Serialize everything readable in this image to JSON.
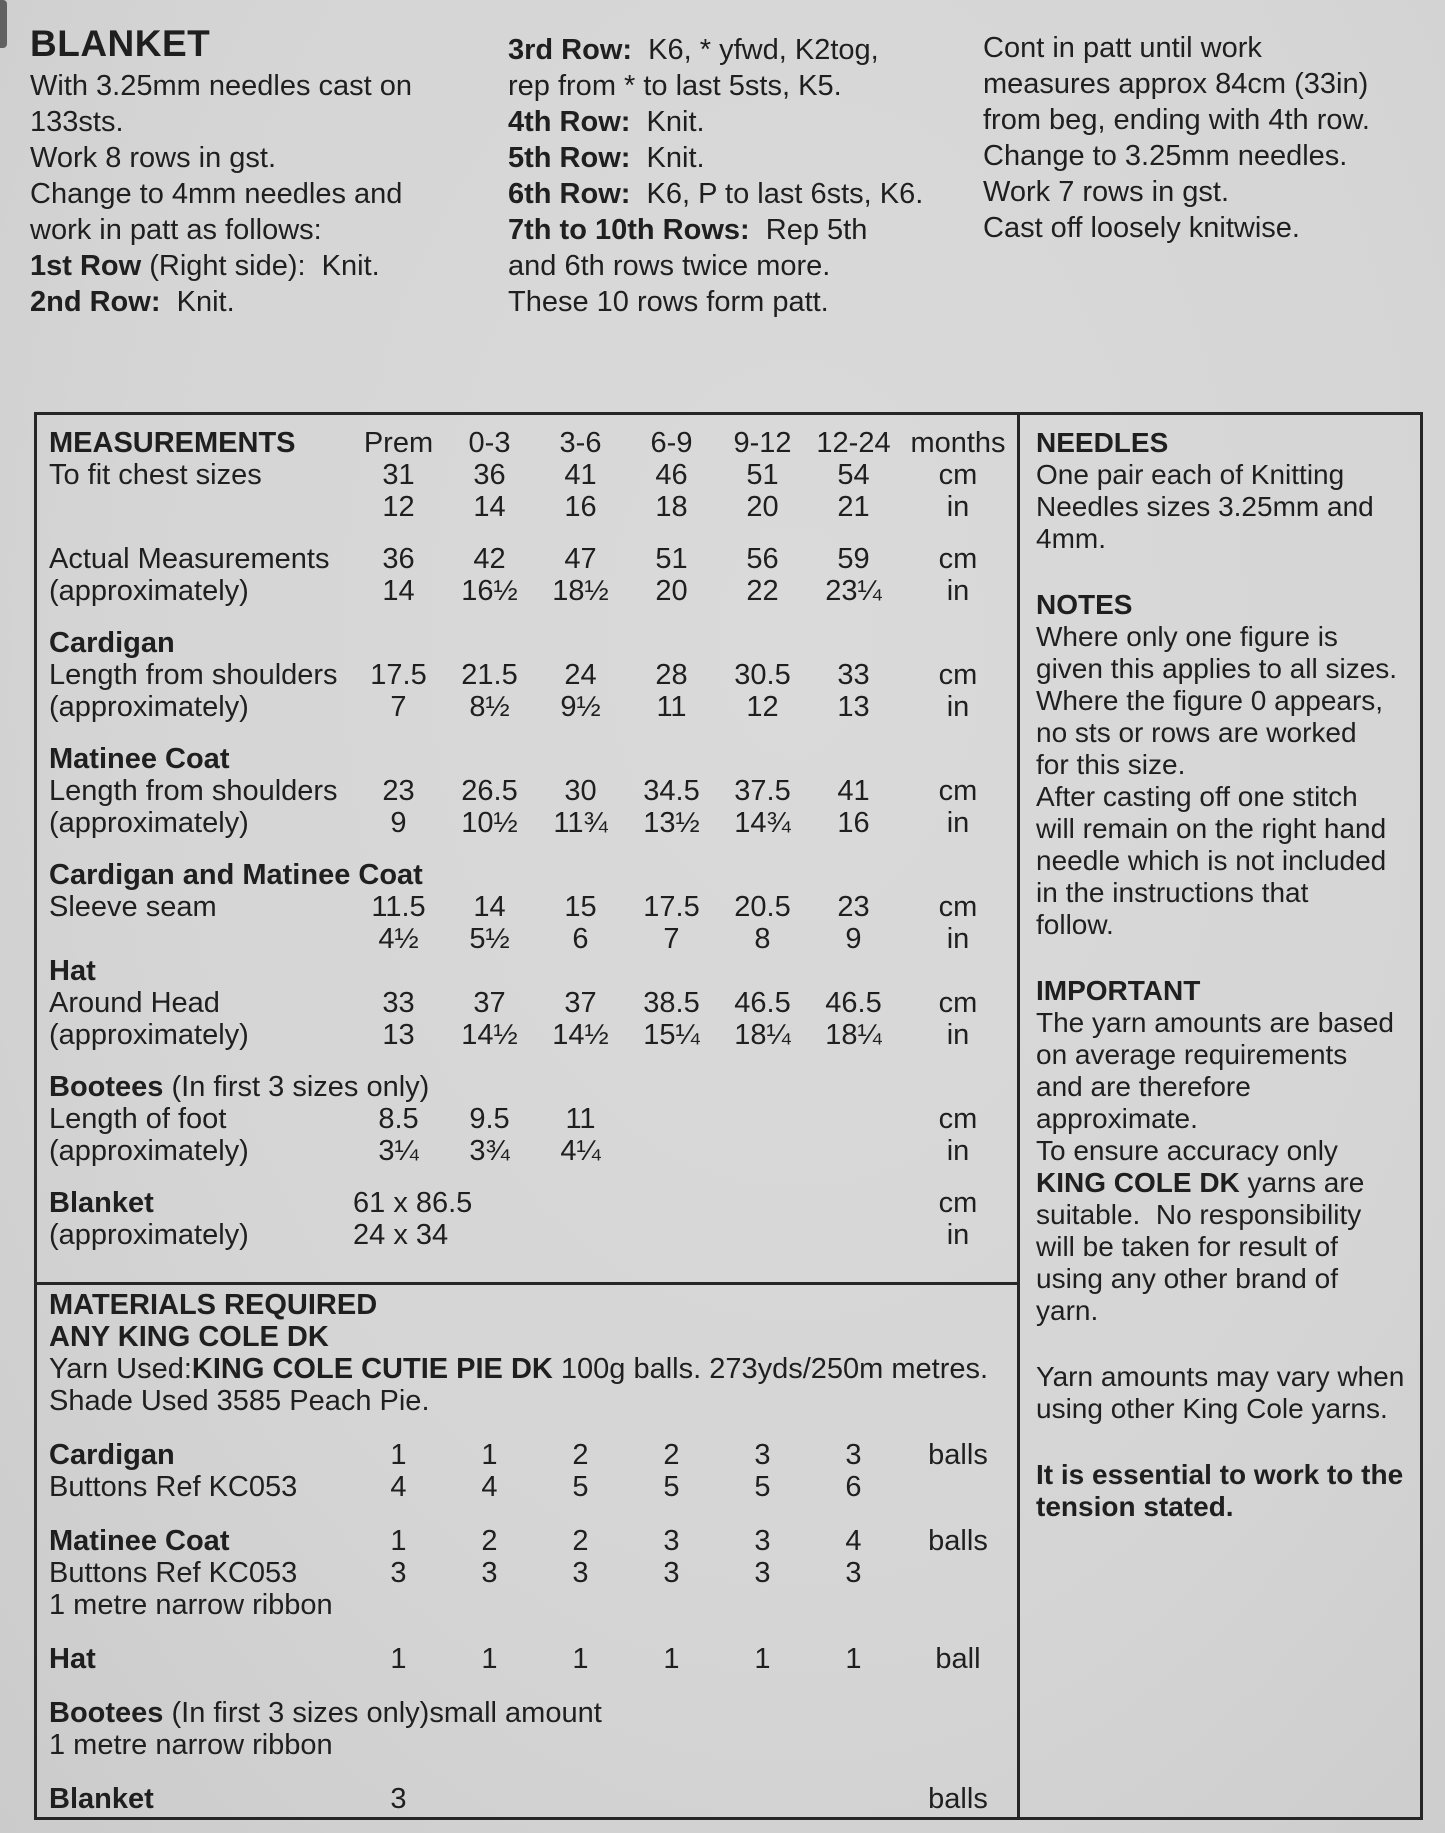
{
  "intro": {
    "columns": [
      {
        "lines": [
          [
            {
              "t": "BLANKET",
              "b": true,
              "h": true
            }
          ],
          [
            {
              "t": "With 3.25mm needles cast on"
            }
          ],
          [
            {
              "t": "133sts."
            }
          ],
          [
            {
              "t": "Work 8 rows in gst."
            }
          ],
          [
            {
              "t": "Change to 4mm needles and"
            }
          ],
          [
            {
              "t": "work in patt as follows:"
            }
          ],
          [
            {
              "t": "1st Row",
              "b": true
            },
            {
              "t": " (Right side):  Knit."
            }
          ],
          [
            {
              "t": "2nd Row:",
              "b": true
            },
            {
              "t": "  Knit."
            }
          ]
        ]
      },
      {
        "lines": [
          [
            {
              "t": "3rd Row:",
              "b": true
            },
            {
              "t": "  K6, * yfwd, K2tog,"
            }
          ],
          [
            {
              "t": "rep from * to last 5sts, K5."
            }
          ],
          [
            {
              "t": "4th Row:",
              "b": true
            },
            {
              "t": "  Knit."
            }
          ],
          [
            {
              "t": "5th Row:",
              "b": true
            },
            {
              "t": "  Knit."
            }
          ],
          [
            {
              "t": "6th Row:",
              "b": true
            },
            {
              "t": "  K6, P to last 6sts, K6."
            }
          ],
          [
            {
              "t": "7th to 10th Rows:",
              "b": true
            },
            {
              "t": "  Rep 5th"
            }
          ],
          [
            {
              "t": "and 6th rows twice more."
            }
          ],
          [
            {
              "t": "These 10 rows form patt."
            }
          ]
        ]
      },
      {
        "lines": [
          [
            {
              "t": "Cont in patt until work"
            }
          ],
          [
            {
              "t": "measures approx 84cm (33in)"
            }
          ],
          [
            {
              "t": "from beg, ending with 4th row."
            }
          ],
          [
            {
              "t": "Change to 3.25mm needles."
            }
          ],
          [
            {
              "t": "Work 7 rows in gst."
            }
          ],
          [
            {
              "t": "Cast off loosely knitwise."
            }
          ]
        ]
      }
    ]
  },
  "measurements": {
    "rows": [
      {
        "type": "header",
        "label": "MEASUREMENTS",
        "values": [
          "Prem",
          "0-3",
          "3-6",
          "6-9",
          "9-12",
          "12-24"
        ],
        "unit": "months"
      },
      {
        "type": "data",
        "label": "To fit chest sizes",
        "values": [
          "31",
          "36",
          "41",
          "46",
          "51",
          "54"
        ],
        "unit": "cm"
      },
      {
        "type": "data",
        "label": "",
        "values": [
          "12",
          "14",
          "16",
          "18",
          "20",
          "21"
        ],
        "unit": "in"
      },
      {
        "type": "gap"
      },
      {
        "type": "data",
        "label": "Actual Measurements",
        "values": [
          "36",
          "42",
          "47",
          "51",
          "56",
          "59"
        ],
        "unit": "cm"
      },
      {
        "type": "data",
        "label": "(approximately)",
        "values": [
          "14",
          "16½",
          "18½",
          "20",
          "22",
          "23¼"
        ],
        "unit": "in"
      },
      {
        "type": "gap"
      },
      {
        "type": "section",
        "segments": [
          {
            "t": "Cardigan",
            "b": true
          }
        ]
      },
      {
        "type": "data",
        "label": "Length from shoulders",
        "values": [
          "17.5",
          "21.5",
          "24",
          "28",
          "30.5",
          "33"
        ],
        "unit": "cm"
      },
      {
        "type": "data",
        "label": "(approximately)",
        "values": [
          "7",
          "8½",
          "9½",
          "11",
          "12",
          "13"
        ],
        "unit": "in"
      },
      {
        "type": "gap"
      },
      {
        "type": "section",
        "segments": [
          {
            "t": "Matinee Coat",
            "b": true
          }
        ]
      },
      {
        "type": "data",
        "label": "Length from shoulders",
        "values": [
          "23",
          "26.5",
          "30",
          "34.5",
          "37.5",
          "41"
        ],
        "unit": "cm"
      },
      {
        "type": "data",
        "label": "(approximately)",
        "values": [
          "9",
          "10½",
          "11¾",
          "13½",
          "14¾",
          "16"
        ],
        "unit": "in"
      },
      {
        "type": "gap"
      },
      {
        "type": "section",
        "segments": [
          {
            "t": "Cardigan and Matinee Coat",
            "b": true
          }
        ]
      },
      {
        "type": "data",
        "label": "Sleeve seam",
        "values": [
          "11.5",
          "14",
          "15",
          "17.5",
          "20.5",
          "23"
        ],
        "unit": "cm"
      },
      {
        "type": "data",
        "label": "",
        "values": [
          "4½",
          "5½",
          "6",
          "7",
          "8",
          "9"
        ],
        "unit": "in"
      },
      {
        "type": "section",
        "segments": [
          {
            "t": "Hat",
            "b": true
          }
        ]
      },
      {
        "type": "data",
        "label": "Around Head",
        "values": [
          "33",
          "37",
          "37",
          "38.5",
          "46.5",
          "46.5"
        ],
        "unit": "cm"
      },
      {
        "type": "data",
        "label": "(approximately)",
        "values": [
          "13",
          "14½",
          "14½",
          "15¼",
          "18¼",
          "18¼"
        ],
        "unit": "in"
      },
      {
        "type": "gap"
      },
      {
        "type": "section",
        "segments": [
          {
            "t": "Bootees",
            "b": true
          },
          {
            "t": " (In first 3 sizes only)"
          }
        ]
      },
      {
        "type": "data",
        "label": "Length of foot",
        "values": [
          "8.5",
          "9.5",
          "11",
          "",
          "",
          ""
        ],
        "unit": "cm"
      },
      {
        "type": "data",
        "label": "(approximately)",
        "values": [
          "3¼",
          "3¾",
          "4¼",
          "",
          "",
          ""
        ],
        "unit": "in"
      },
      {
        "type": "gap"
      },
      {
        "type": "data",
        "label": "Blanket",
        "bold": true,
        "span_value": "61 x 86.5",
        "unit": "cm"
      },
      {
        "type": "data",
        "label": "(approximately)",
        "span_value": "24 x 34",
        "unit": "in"
      }
    ]
  },
  "materials": {
    "rows": [
      {
        "type": "rich",
        "segments": [
          {
            "t": "MATERIALS REQUIRED",
            "b": true
          }
        ]
      },
      {
        "type": "rich",
        "segments": [
          {
            "t": "ANY KING COLE DK",
            "b": true
          }
        ]
      },
      {
        "type": "rich",
        "segments": [
          {
            "t": "Yarn Used:"
          },
          {
            "t": "KING COLE CUTIE PIE DK",
            "b": true
          },
          {
            "t": " 100g balls. 273yds/250m metres."
          }
        ]
      },
      {
        "type": "rich",
        "segments": [
          {
            "t": "Shade Used 3585 Peach Pie."
          }
        ]
      },
      {
        "type": "gap"
      },
      {
        "type": "data",
        "label": "Cardigan",
        "bold": true,
        "values": [
          "1",
          "1",
          "2",
          "2",
          "3",
          "3"
        ],
        "unit": "balls"
      },
      {
        "type": "data",
        "label": "Buttons Ref KC053",
        "values": [
          "4",
          "4",
          "5",
          "5",
          "5",
          "6"
        ],
        "unit": ""
      },
      {
        "type": "gap"
      },
      {
        "type": "data",
        "label": "Matinee Coat",
        "bold": true,
        "values": [
          "1",
          "2",
          "2",
          "3",
          "3",
          "4"
        ],
        "unit": "balls"
      },
      {
        "type": "data",
        "label": "Buttons Ref KC053",
        "values": [
          "3",
          "3",
          "3",
          "3",
          "3",
          "3"
        ],
        "unit": ""
      },
      {
        "type": "rich",
        "segments": [
          {
            "t": "1 metre narrow ribbon"
          }
        ]
      },
      {
        "type": "gap"
      },
      {
        "type": "data",
        "label": "Hat",
        "bold": true,
        "values": [
          "1",
          "1",
          "1",
          "1",
          "1",
          "1"
        ],
        "unit": "ball"
      },
      {
        "type": "gap"
      },
      {
        "type": "rich",
        "segments": [
          {
            "t": "Bootees",
            "b": true
          },
          {
            "t": " (In first 3 sizes only)small amount"
          }
        ]
      },
      {
        "type": "rich",
        "segments": [
          {
            "t": "1 metre narrow ribbon"
          }
        ]
      },
      {
        "type": "gap"
      },
      {
        "type": "data",
        "label": "Blanket",
        "bold": true,
        "values": [
          "3",
          "",
          "",
          "",
          "",
          ""
        ],
        "unit": "balls"
      }
    ]
  },
  "notes_panel": {
    "blocks": [
      {
        "type": "heading",
        "segments": [
          {
            "t": "NEEDLES",
            "b": true
          }
        ]
      },
      {
        "type": "line",
        "segments": [
          {
            "t": "One pair each of Knitting"
          }
        ]
      },
      {
        "type": "line",
        "segments": [
          {
            "t": "Needles sizes 3.25mm and"
          }
        ]
      },
      {
        "type": "line",
        "segments": [
          {
            "t": "4mm."
          }
        ]
      },
      {
        "type": "gap"
      },
      {
        "type": "heading",
        "segments": [
          {
            "t": "NOTES",
            "b": true
          }
        ]
      },
      {
        "type": "line",
        "segments": [
          {
            "t": "Where only one figure is"
          }
        ]
      },
      {
        "type": "line",
        "segments": [
          {
            "t": "given this applies to all sizes."
          }
        ]
      },
      {
        "type": "line",
        "segments": [
          {
            "t": "Where the figure 0 appears,"
          }
        ]
      },
      {
        "type": "line",
        "segments": [
          {
            "t": "no sts or rows are worked"
          }
        ]
      },
      {
        "type": "line",
        "segments": [
          {
            "t": "for this size."
          }
        ]
      },
      {
        "type": "line",
        "segments": [
          {
            "t": "After casting off one stitch"
          }
        ]
      },
      {
        "type": "line",
        "segments": [
          {
            "t": "will remain on the right hand"
          }
        ]
      },
      {
        "type": "line",
        "segments": [
          {
            "t": "needle which is not included"
          }
        ]
      },
      {
        "type": "line",
        "segments": [
          {
            "t": "in the instructions that"
          }
        ]
      },
      {
        "type": "line",
        "segments": [
          {
            "t": "follow."
          }
        ]
      },
      {
        "type": "gap"
      },
      {
        "type": "heading",
        "segments": [
          {
            "t": "IMPORTANT",
            "b": true
          }
        ]
      },
      {
        "type": "line",
        "segments": [
          {
            "t": "The yarn amounts are based"
          }
        ]
      },
      {
        "type": "line",
        "segments": [
          {
            "t": "on average requirements"
          }
        ]
      },
      {
        "type": "line",
        "segments": [
          {
            "t": "and are therefore"
          }
        ]
      },
      {
        "type": "line",
        "segments": [
          {
            "t": "approximate."
          }
        ]
      },
      {
        "type": "line",
        "segments": [
          {
            "t": "To ensure accuracy only"
          }
        ]
      },
      {
        "type": "line",
        "segments": [
          {
            "t": "KING COLE DK",
            "b": true
          },
          {
            "t": " yarns are"
          }
        ]
      },
      {
        "type": "line",
        "segments": [
          {
            "t": "suitable.  No responsibility"
          }
        ]
      },
      {
        "type": "line",
        "segments": [
          {
            "t": "will be taken for result of"
          }
        ]
      },
      {
        "type": "line",
        "segments": [
          {
            "t": "using any other brand of"
          }
        ]
      },
      {
        "type": "line",
        "segments": [
          {
            "t": "yarn."
          }
        ]
      },
      {
        "type": "gap"
      },
      {
        "type": "line",
        "segments": [
          {
            "t": "Yarn amounts may vary when"
          }
        ]
      },
      {
        "type": "line",
        "segments": [
          {
            "t": "using other King Cole yarns."
          }
        ]
      },
      {
        "type": "gap"
      },
      {
        "type": "line",
        "segments": [
          {
            "t": "It is essential to work to the",
            "b": true
          }
        ]
      },
      {
        "type": "line",
        "segments": [
          {
            "t": "tension stated.",
            "b": true
          }
        ]
      }
    ]
  },
  "colors": {
    "paper": "#d6d6d6",
    "ink": "#1f1f1f",
    "line": "#262626"
  }
}
